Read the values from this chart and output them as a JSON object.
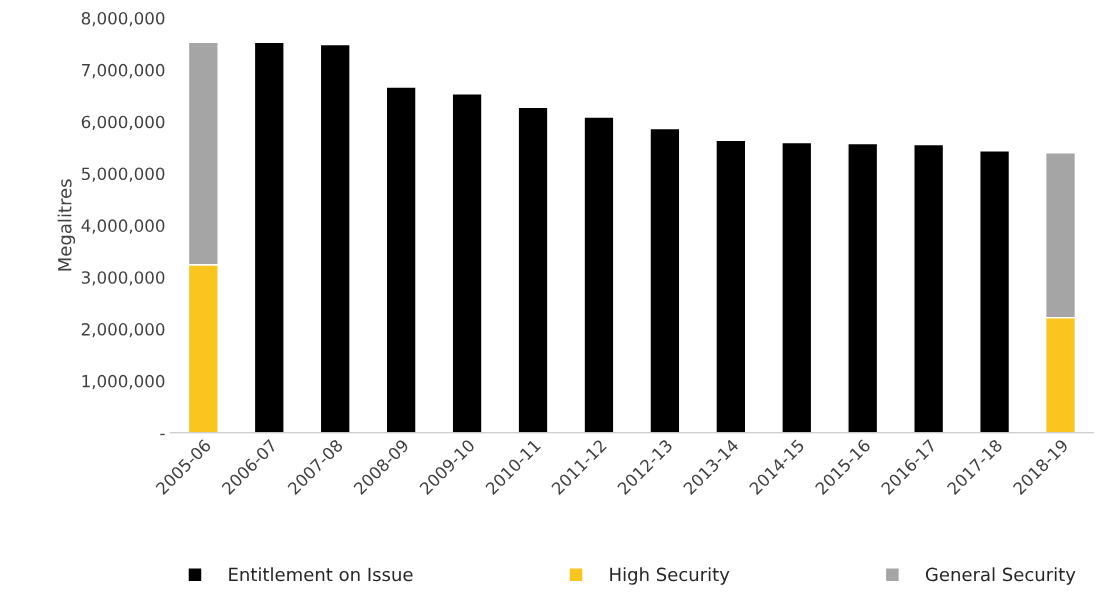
{
  "chart_data": {
    "type": "bar",
    "stacked": true,
    "ylabel": "Megalitres",
    "categories": [
      "2005-06",
      "2006-07",
      "2007-08",
      "2008-09",
      "2009-10",
      "2010-11",
      "2011-12",
      "2012-13",
      "2013-14",
      "2014-15",
      "2015-16",
      "2016-17",
      "2017-18",
      "2018-19"
    ],
    "series": [
      {
        "name": "Entitlement on Issue",
        "color": "#000000",
        "values": [
          null,
          7530000,
          7490000,
          6670000,
          6540000,
          6280000,
          6090000,
          5870000,
          5640000,
          5600000,
          5580000,
          5560000,
          5440000,
          null
        ]
      },
      {
        "name": "High Security",
        "color": "#f9c51e",
        "values": [
          3240000,
          null,
          null,
          null,
          null,
          null,
          null,
          null,
          null,
          null,
          null,
          null,
          null,
          2220000
        ]
      },
      {
        "name": "General Security",
        "color": "#a5a5a5",
        "values": [
          4290000,
          null,
          null,
          null,
          null,
          null,
          null,
          null,
          null,
          null,
          null,
          null,
          null,
          3180000
        ]
      }
    ],
    "ylim": [
      0,
      8000000
    ],
    "yticks": [
      {
        "value": 0,
        "label": "-"
      },
      {
        "value": 1000000,
        "label": "1,000,000"
      },
      {
        "value": 2000000,
        "label": "2,000,000"
      },
      {
        "value": 3000000,
        "label": "3,000,000"
      },
      {
        "value": 4000000,
        "label": "4,000,000"
      },
      {
        "value": 5000000,
        "label": "5,000,000"
      },
      {
        "value": 6000000,
        "label": "6,000,000"
      },
      {
        "value": 7000000,
        "label": "7,000,000"
      },
      {
        "value": 8000000,
        "label": "8,000,000"
      }
    ],
    "legend": "bottom",
    "grid": false
  }
}
